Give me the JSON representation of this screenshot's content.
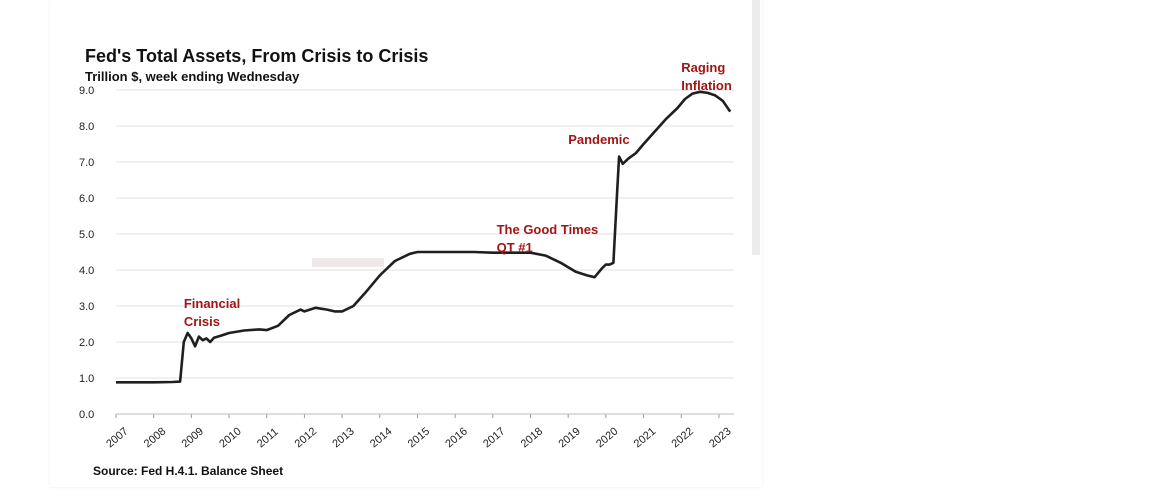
{
  "chart_data": {
    "type": "line",
    "title": "Fed's Total Assets, From Crisis to Crisis",
    "subtitle": "Trillion $, week ending Wednesday",
    "source": "Source: Fed H.4.1. Balance Sheet",
    "xlabel": "",
    "ylabel": "",
    "ylim": [
      0,
      9
    ],
    "yticks": [
      "0.0",
      "1.0",
      "2.0",
      "3.0",
      "4.0",
      "5.0",
      "6.0",
      "7.0",
      "8.0",
      "9.0"
    ],
    "xlim": [
      2007,
      2023.4
    ],
    "xticks": [
      "2007",
      "2008",
      "2009",
      "2010",
      "2011",
      "2012",
      "2013",
      "2014",
      "2015",
      "2016",
      "2017",
      "2018",
      "2019",
      "2020",
      "2021",
      "2022",
      "2023"
    ],
    "grid": true,
    "series_color": "#1f1f1f",
    "annotation_color": "#a31515",
    "series": [
      {
        "x": [
          2007.0,
          2007.5,
          2008.0,
          2008.5,
          2008.7,
          2008.8,
          2008.9,
          2009.0,
          2009.1,
          2009.2,
          2009.3,
          2009.4,
          2009.5,
          2009.6,
          2009.8,
          2010.0,
          2010.4,
          2010.8,
          2011.0,
          2011.3,
          2011.6,
          2011.9,
          2012.0,
          2012.3,
          2012.6,
          2012.8,
          2013.0,
          2013.3,
          2013.6,
          2014.0,
          2014.4,
          2014.8,
          2015.0,
          2015.5,
          2016.0,
          2016.5,
          2017.0,
          2017.5,
          2018.0,
          2018.4,
          2018.8,
          2019.2,
          2019.5,
          2019.7,
          2019.9,
          2020.0,
          2020.1,
          2020.2,
          2020.3,
          2020.35,
          2020.45,
          2020.6,
          2020.8,
          2021.0,
          2021.3,
          2021.6,
          2021.9,
          2022.1,
          2022.3,
          2022.5,
          2022.7,
          2022.9,
          2023.1,
          2023.3
        ],
        "y": [
          0.88,
          0.88,
          0.88,
          0.89,
          0.9,
          2.0,
          2.25,
          2.1,
          1.88,
          2.15,
          2.05,
          2.1,
          2.0,
          2.12,
          2.18,
          2.25,
          2.32,
          2.35,
          2.33,
          2.45,
          2.75,
          2.9,
          2.85,
          2.95,
          2.9,
          2.85,
          2.85,
          3.0,
          3.35,
          3.85,
          4.25,
          4.45,
          4.5,
          4.5,
          4.5,
          4.5,
          4.48,
          4.48,
          4.48,
          4.4,
          4.2,
          3.95,
          3.85,
          3.8,
          4.05,
          4.15,
          4.15,
          4.2,
          6.2,
          7.15,
          6.95,
          7.1,
          7.25,
          7.5,
          7.85,
          8.2,
          8.5,
          8.75,
          8.9,
          8.95,
          8.92,
          8.85,
          8.7,
          8.4
        ]
      }
    ],
    "annotations": [
      {
        "lines": [
          "Financial",
          "Crisis"
        ],
        "x": 2008.8,
        "y": 2.95
      },
      {
        "lines": [
          "The Good Times",
          "QT #1"
        ],
        "x": 2017.1,
        "y": 5.0
      },
      {
        "lines": [
          "Pandemic"
        ],
        "x": 2019.0,
        "y": 7.5
      },
      {
        "lines": [
          "Raging",
          "Inflation"
        ],
        "x": 2022.0,
        "y": 9.5
      }
    ]
  }
}
